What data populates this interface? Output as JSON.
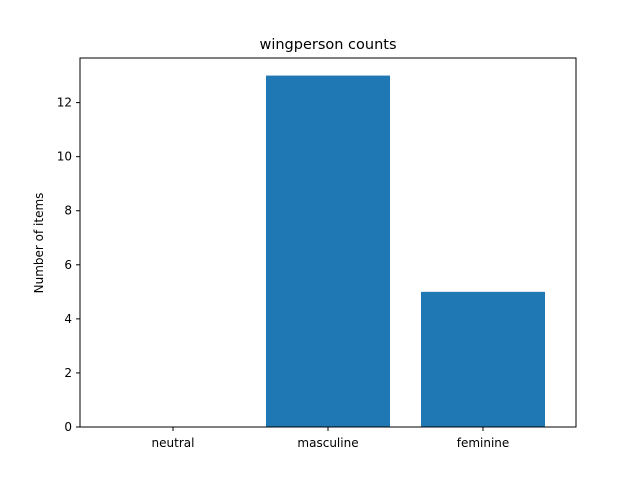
{
  "chart_data": {
    "type": "bar",
    "title": "wingperson counts",
    "xlabel": "",
    "ylabel": "Number of items",
    "categories": [
      "neutral",
      "masculine",
      "feminine"
    ],
    "values": [
      0,
      13,
      5
    ],
    "ylim": [
      0,
      13.65
    ],
    "yticks": [
      0,
      2,
      4,
      6,
      8,
      10,
      12
    ],
    "grid": false,
    "legend": "none",
    "bar_color": "#1f77b4"
  }
}
